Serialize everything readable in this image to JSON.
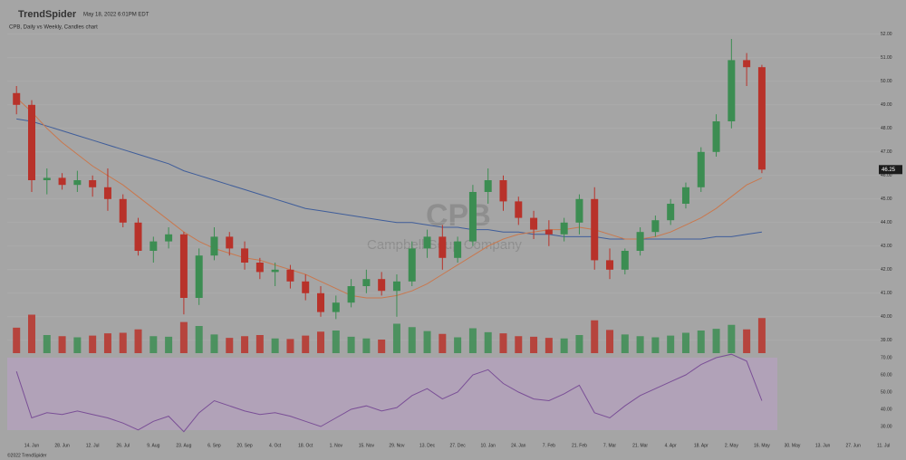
{
  "header": {
    "brand": "TrendSpider",
    "timestamp": "May 18, 2022 6:01PM EDT"
  },
  "footer": "©2022 TrendSpider",
  "watermark": {
    "ticker": "CPB",
    "company": "Campbell Soup Company"
  },
  "chart_data": [
    {
      "type": "candlestick",
      "title": "CPB, Daily vs Weekly, Candles chart",
      "categories": [
        null,
        "14. Jun",
        null,
        "28. Jun",
        null,
        "12. Jul",
        null,
        "26. Jul",
        null,
        "9. Aug",
        null,
        "23. Aug",
        null,
        "6. Sep",
        null,
        "20. Sep",
        null,
        "4. Oct",
        null,
        "18. Oct",
        null,
        "1. Nov",
        null,
        "15. Nov",
        null,
        "29. Nov",
        null,
        "13. Dec",
        null,
        "27. Dec",
        null,
        "10. Jan",
        null,
        "24. Jan",
        null,
        "7. Feb",
        null,
        "21. Feb",
        null,
        "7. Mar",
        null,
        "21. Mar",
        null,
        "4. Apr",
        null,
        "18. Apr",
        null,
        "2. May",
        null,
        "16. May",
        null,
        "30. May",
        null,
        "13. Jun",
        null,
        "27. Jun",
        null,
        "11. Jul"
      ],
      "open": [
        49.5,
        49.0,
        45.8,
        45.9,
        45.6,
        45.8,
        45.5,
        45.0,
        44.0,
        42.8,
        43.2,
        43.5,
        40.8,
        42.6,
        43.4,
        42.9,
        42.3,
        41.9,
        42.0,
        41.5,
        41.0,
        40.2,
        40.6,
        41.3,
        41.6,
        41.1,
        41.5,
        42.9,
        43.4,
        42.5,
        43.2,
        45.3,
        45.8,
        44.9,
        44.2,
        43.7,
        43.5,
        44.0,
        45.0,
        42.4,
        42.0,
        42.8,
        43.6,
        44.1,
        44.8,
        45.5,
        47.0,
        48.3,
        50.9,
        50.6,
        null,
        null,
        null,
        null,
        null,
        null,
        null,
        null
      ],
      "high": [
        49.8,
        49.2,
        46.3,
        46.1,
        46.2,
        46.0,
        46.3,
        45.2,
        44.2,
        43.4,
        43.8,
        43.6,
        42.9,
        43.8,
        43.6,
        43.2,
        42.5,
        42.3,
        42.2,
        41.8,
        41.3,
        40.9,
        41.6,
        42.0,
        41.9,
        41.8,
        43.2,
        43.7,
        43.9,
        43.4,
        45.6,
        46.3,
        46.0,
        45.1,
        44.5,
        44.1,
        44.2,
        45.2,
        45.5,
        42.9,
        42.9,
        43.8,
        44.3,
        45.0,
        45.7,
        47.2,
        48.6,
        51.8,
        51.2,
        50.7,
        null,
        null,
        null,
        null,
        null,
        null,
        null,
        null
      ],
      "low": [
        48.6,
        45.3,
        45.2,
        45.4,
        45.3,
        45.1,
        44.5,
        43.8,
        42.6,
        42.3,
        42.9,
        40.1,
        40.5,
        42.4,
        42.6,
        42.0,
        41.6,
        41.3,
        41.2,
        40.7,
        40.0,
        39.9,
        40.4,
        41.0,
        40.9,
        40.0,
        41.3,
        42.5,
        42.0,
        42.3,
        43.0,
        44.8,
        44.5,
        43.9,
        43.3,
        43.0,
        43.2,
        43.5,
        42.0,
        41.6,
        41.8,
        42.6,
        43.4,
        43.9,
        44.6,
        45.3,
        46.8,
        48.0,
        49.8,
        46.1,
        null,
        null,
        null,
        null,
        null,
        null,
        null,
        null
      ],
      "close": [
        49.0,
        45.8,
        45.9,
        45.6,
        45.8,
        45.5,
        45.0,
        44.0,
        42.8,
        43.2,
        43.5,
        40.8,
        42.6,
        43.4,
        42.9,
        42.3,
        41.9,
        42.0,
        41.5,
        41.0,
        40.2,
        40.6,
        41.3,
        41.6,
        41.1,
        41.5,
        42.9,
        43.4,
        42.5,
        43.2,
        45.3,
        45.8,
        44.9,
        44.2,
        43.7,
        43.5,
        44.0,
        45.0,
        42.4,
        42.0,
        42.8,
        43.6,
        44.1,
        44.8,
        45.5,
        47.0,
        48.3,
        50.9,
        50.6,
        46.25,
        null,
        null,
        null,
        null,
        null,
        null,
        null,
        null
      ],
      "up_color": "#3c8d52",
      "down_color": "#b8322a",
      "lines": [
        {
          "color": "#3f5d9a",
          "values": [
            48.4,
            48.3,
            48.1,
            47.9,
            47.7,
            47.5,
            47.3,
            47.1,
            46.9,
            46.7,
            46.5,
            46.2,
            46.0,
            45.8,
            45.6,
            45.4,
            45.2,
            45.0,
            44.8,
            44.6,
            44.5,
            44.4,
            44.3,
            44.2,
            44.1,
            44.0,
            44.0,
            43.9,
            43.8,
            43.8,
            43.7,
            43.7,
            43.6,
            43.6,
            43.5,
            43.5,
            43.4,
            43.4,
            43.4,
            43.3,
            43.3,
            43.3,
            43.3,
            43.3,
            43.3,
            43.3,
            43.4,
            43.4,
            43.5,
            43.6,
            null,
            null,
            null,
            null,
            null,
            null,
            null,
            null
          ]
        },
        {
          "color": "#c9784e",
          "values": [
            49.3,
            48.7,
            48.0,
            47.4,
            46.9,
            46.4,
            46.0,
            45.6,
            45.1,
            44.6,
            44.1,
            43.6,
            43.2,
            42.9,
            42.7,
            42.5,
            42.4,
            42.2,
            42.0,
            41.8,
            41.5,
            41.2,
            40.9,
            40.8,
            40.8,
            40.9,
            41.1,
            41.4,
            41.8,
            42.2,
            42.6,
            43.0,
            43.3,
            43.5,
            43.6,
            43.7,
            43.7,
            43.8,
            43.7,
            43.5,
            43.3,
            43.3,
            43.4,
            43.6,
            43.9,
            44.2,
            44.6,
            45.1,
            45.6,
            45.9,
            null,
            null,
            null,
            null,
            null,
            null,
            null,
            null
          ]
        }
      ],
      "ylim": [
        38.8,
        52.3
      ],
      "yticks": [
        {
          "value": 39,
          "label": "39.00"
        },
        {
          "value": 40,
          "label": "40.00"
        },
        {
          "value": 41,
          "label": "41.00"
        },
        {
          "value": 42,
          "label": "42.00"
        },
        {
          "value": 43,
          "label": "43.00"
        },
        {
          "value": 44,
          "label": "44.00"
        },
        {
          "value": 45,
          "label": "45.00"
        },
        {
          "value": 46,
          "label": "46.00"
        },
        {
          "value": 47,
          "label": "47.00"
        },
        {
          "value": 48,
          "label": "48.00"
        },
        {
          "value": 49,
          "label": "49.00"
        },
        {
          "value": 50,
          "label": "50.00"
        },
        {
          "value": 51,
          "label": "51.00"
        },
        {
          "value": 52,
          "label": "52.00"
        }
      ],
      "grid": true
    },
    {
      "type": "bar",
      "values": [
        4.5,
        6.8,
        3.2,
        3.0,
        2.8,
        3.1,
        3.5,
        3.6,
        4.2,
        3.0,
        2.9,
        5.5,
        4.8,
        3.3,
        2.7,
        3.0,
        3.2,
        2.6,
        2.5,
        3.1,
        3.8,
        4.0,
        2.9,
        2.6,
        2.4,
        5.2,
        4.6,
        3.9,
        3.4,
        2.8,
        4.4,
        3.7,
        3.5,
        3.0,
        2.9,
        2.7,
        2.6,
        3.2,
        5.8,
        4.1,
        3.3,
        3.0,
        2.8,
        3.1,
        3.6,
        4.0,
        4.3,
        5.0,
        4.2,
        6.2,
        null,
        null,
        null,
        null,
        null,
        null,
        null,
        null
      ],
      "ylim": [
        0,
        8
      ]
    },
    {
      "type": "line",
      "color": "#7a4f96",
      "values": [
        62,
        35,
        38,
        37,
        39,
        37,
        35,
        32,
        28,
        33,
        36,
        27,
        38,
        45,
        42,
        39,
        37,
        38,
        36,
        33,
        30,
        35,
        40,
        42,
        39,
        41,
        48,
        52,
        46,
        50,
        60,
        63,
        55,
        50,
        46,
        45,
        49,
        54,
        38,
        35,
        42,
        48,
        52,
        56,
        60,
        66,
        70,
        72,
        68,
        45,
        null,
        null,
        null,
        null,
        null,
        null,
        null,
        null
      ],
      "ylim": [
        26.3,
        71.6
      ],
      "yticks": [
        {
          "value": 30,
          "label": "30.00"
        },
        {
          "value": 40,
          "label": "40.00"
        },
        {
          "value": 50,
          "label": "50.00"
        },
        {
          "value": 60,
          "label": "60.00"
        },
        {
          "value": 70,
          "label": "70.00"
        }
      ]
    }
  ]
}
